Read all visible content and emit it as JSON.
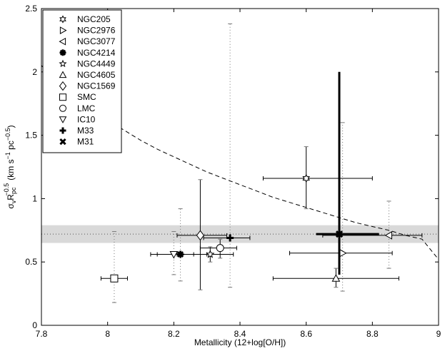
{
  "chart_data": {
    "type": "scatter",
    "xlabel": "Metallicity (12+log[O/H])",
    "ylabel": "σ",
    "ylabel_parts": {
      "sub_v": "v",
      "R": "R",
      "sub_pc": "pc",
      "exp": "−0.5",
      "unit_open": "(km s",
      "exp_unit1": "−1",
      "pc": " pc",
      "exp_unit2": "−0.5",
      "unit_close": ")"
    },
    "xlim": [
      7.8,
      9.0
    ],
    "ylim": [
      0,
      2.5
    ],
    "xticks": [
      7.8,
      8.0,
      8.2,
      8.4,
      8.6,
      8.8,
      9.0
    ],
    "xtick_labels": [
      "7.8",
      "8",
      "8.2",
      "8.4",
      "8.6",
      "8.8",
      "9"
    ],
    "yticks": [
      0,
      0.5,
      1.0,
      1.5,
      2.0,
      2.5
    ],
    "ytick_labels": [
      "0",
      "0.5",
      "1",
      "1.5",
      "2",
      "2.5"
    ],
    "reference_level": 0.72,
    "reference_band": [
      0.65,
      0.79
    ],
    "dashed_curve": {
      "description": "model curve",
      "x": [
        7.8,
        7.85,
        7.9,
        7.95,
        8.0,
        8.05,
        8.1,
        8.15,
        8.2,
        8.25,
        8.3,
        8.35,
        8.4,
        8.45,
        8.5,
        8.55,
        8.6,
        8.65,
        8.7,
        8.75,
        8.8,
        8.85,
        8.9,
        8.95,
        9.0
      ],
      "y": [
        2.05,
        1.92,
        1.81,
        1.71,
        1.62,
        1.54,
        1.46,
        1.39,
        1.33,
        1.27,
        1.21,
        1.16,
        1.11,
        1.06,
        1.01,
        0.97,
        0.93,
        0.89,
        0.85,
        0.81,
        0.78,
        0.75,
        0.71,
        0.68,
        0.52
      ]
    },
    "series": [
      {
        "name": "NGC205",
        "marker": "hexstar",
        "x": 8.6,
        "y": 1.16,
        "xerr": [
          8.47,
          8.8
        ],
        "yerr": [
          0.92,
          1.41
        ],
        "yerr_style": "solid"
      },
      {
        "name": "NGC2976",
        "marker": "tri-right",
        "x": 8.71,
        "y": 0.57,
        "xerr": [
          8.55,
          8.86
        ],
        "yerr": [
          0.27,
          1.6
        ],
        "yerr_style": "dotted"
      },
      {
        "name": "NGC3077",
        "marker": "tri-left",
        "x": 8.85,
        "y": 0.71,
        "xerr": [
          8.65,
          8.95
        ],
        "yerr": [
          0.45,
          0.98
        ],
        "yerr_style": "dotted"
      },
      {
        "name": "NGC4214",
        "marker": "asterisk",
        "x": 8.22,
        "y": 0.56,
        "xerr": [
          8.13,
          8.3
        ],
        "yerr": [
          0.35,
          0.92
        ],
        "yerr_style": "dotted"
      },
      {
        "name": "NGC4449",
        "marker": "star",
        "x": 8.31,
        "y": 0.56,
        "xerr": [
          8.21,
          8.38
        ],
        "yerr": [
          0.5,
          0.62
        ],
        "yerr_style": "solid"
      },
      {
        "name": "NGC4605",
        "marker": "tri-up",
        "x": 8.69,
        "y": 0.37,
        "xerr": [
          8.5,
          8.88
        ],
        "yerr": [
          0.3,
          0.45
        ],
        "yerr_style": "solid"
      },
      {
        "name": "NGC1569",
        "marker": "diamond",
        "x": 8.28,
        "y": 0.71,
        "xerr": [
          8.21,
          8.36
        ],
        "yerr": [
          0.28,
          1.15
        ],
        "yerr_style": "solid"
      },
      {
        "name": "SMC",
        "marker": "square",
        "x": 8.02,
        "y": 0.37,
        "xerr": [
          7.98,
          8.06
        ],
        "yerr": [
          0.18,
          0.74
        ],
        "yerr_style": "dotted"
      },
      {
        "name": "LMC",
        "marker": "circle",
        "x": 8.34,
        "y": 0.61,
        "xerr": [
          8.28,
          8.39
        ],
        "yerr": [
          0.53,
          0.68
        ],
        "yerr_style": "solid"
      },
      {
        "name": "IC10",
        "marker": "tri-down",
        "x": 8.2,
        "y": 0.56,
        "xerr": [
          8.15,
          8.26
        ],
        "yerr": [
          0.4,
          0.74
        ],
        "yerr_style": "dotted"
      },
      {
        "name": "M33",
        "marker": "plus",
        "x": 8.37,
        "y": 0.69,
        "xerr": [
          8.29,
          8.43
        ],
        "yerr": [
          0.3,
          2.38
        ],
        "yerr_style": "dotted"
      },
      {
        "name": "M31",
        "marker": "x",
        "x": 8.7,
        "y": 0.72,
        "xerr": [
          8.63,
          8.82
        ],
        "yerr": [
          0.4,
          2.0
        ],
        "yerr_style": "thick",
        "xerr_style": "thick"
      }
    ]
  }
}
